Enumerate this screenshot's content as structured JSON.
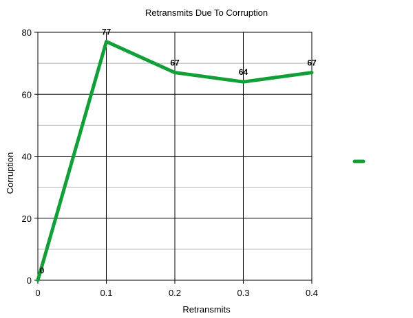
{
  "chart_data": {
    "type": "line",
    "title": "Retransmits Due To Corruption",
    "xlabel": "Retransmits",
    "ylabel": "Corruption",
    "x": [
      0,
      0.1,
      0.2,
      0.3,
      0.4
    ],
    "x_tick_labels": [
      "0",
      "0.1",
      "0.2",
      "0.3",
      "0.4"
    ],
    "xlim": [
      0,
      0.4
    ],
    "ylim": [
      0,
      80
    ],
    "y_ticks": [
      0,
      20,
      40,
      60,
      80
    ],
    "y_tick_labels": [
      "0",
      "20",
      "40",
      "60",
      "80"
    ],
    "y_minor_ticks": [
      10,
      30,
      50,
      70
    ],
    "grid": true,
    "legend": "right",
    "series": [
      {
        "values": [
          0,
          77,
          67,
          64,
          67
        ],
        "data_labels": [
          "0",
          "77",
          "67",
          "64",
          "67"
        ],
        "color": "#10a037"
      }
    ]
  }
}
